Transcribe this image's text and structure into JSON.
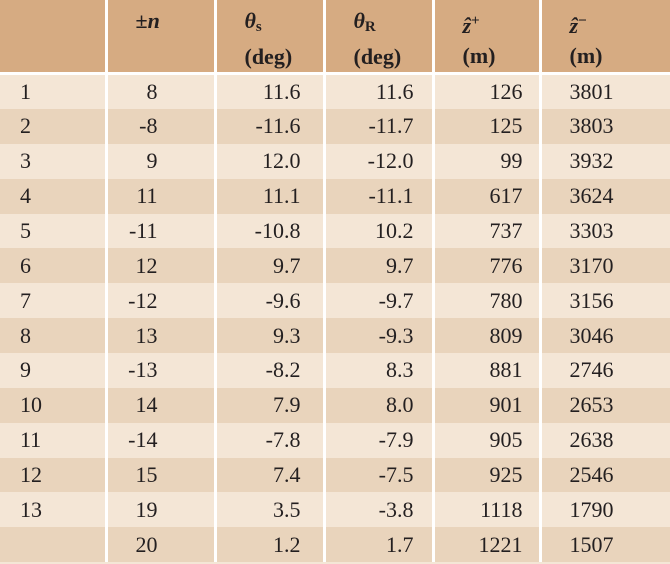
{
  "header": {
    "col1": "±",
    "col1_sym": "n",
    "col2_sym": "θ",
    "col2_sub": "s",
    "col2_unit": "(deg)",
    "col3_sym": "θ",
    "col3_sub": "R",
    "col3_unit": "(deg)",
    "col4_sym": "ẑ",
    "col4_sup": "+",
    "col4_unit": "(m)",
    "col5_sym": "ẑ",
    "col5_sup": "−",
    "col5_unit": "(m)"
  },
  "rows": [
    {
      "idx": "1",
      "n": "8",
      "theta_s": "11.6",
      "theta_r": "11.6",
      "z_plus": "126",
      "z_minus": "3801"
    },
    {
      "idx": "2",
      "n": "-8",
      "theta_s": "-11.6",
      "theta_r": "-11.7",
      "z_plus": "125",
      "z_minus": "3803"
    },
    {
      "idx": "3",
      "n": "9",
      "theta_s": "12.0",
      "theta_r": "-12.0",
      "z_plus": "99",
      "z_minus": "3932"
    },
    {
      "idx": "4",
      "n": "11",
      "theta_s": "11.1",
      "theta_r": "-11.1",
      "z_plus": "617",
      "z_minus": "3624"
    },
    {
      "idx": "5",
      "n": "-11",
      "theta_s": "-10.8",
      "theta_r": "10.2",
      "z_plus": "737",
      "z_minus": "3303"
    },
    {
      "idx": "6",
      "n": "12",
      "theta_s": "9.7",
      "theta_r": "9.7",
      "z_plus": "776",
      "z_minus": "3170"
    },
    {
      "idx": "7",
      "n": "-12",
      "theta_s": "-9.6",
      "theta_r": "-9.7",
      "z_plus": "780",
      "z_minus": "3156"
    },
    {
      "idx": "8",
      "n": "13",
      "theta_s": "9.3",
      "theta_r": "-9.3",
      "z_plus": "809",
      "z_minus": "3046"
    },
    {
      "idx": "9",
      "n": "-13",
      "theta_s": "-8.2",
      "theta_r": "8.3",
      "z_plus": "881",
      "z_minus": "2746"
    },
    {
      "idx": "10",
      "n": "14",
      "theta_s": "7.9",
      "theta_r": "8.0",
      "z_plus": "901",
      "z_minus": "2653"
    },
    {
      "idx": "11",
      "n": "-14",
      "theta_s": "-7.8",
      "theta_r": "-7.9",
      "z_plus": "905",
      "z_minus": "2638"
    },
    {
      "idx": "12",
      "n": "15",
      "theta_s": "7.4",
      "theta_r": "-7.5",
      "z_plus": "925",
      "z_minus": "2546"
    },
    {
      "idx": "13",
      "n": "19",
      "theta_s": "3.5",
      "theta_r": "-3.8",
      "z_plus": "1118",
      "z_minus": "1790"
    },
    {
      "idx": "",
      "n": "20",
      "theta_s": "1.2",
      "theta_r": "1.7",
      "z_plus": "1221",
      "z_minus": "1507"
    }
  ]
}
